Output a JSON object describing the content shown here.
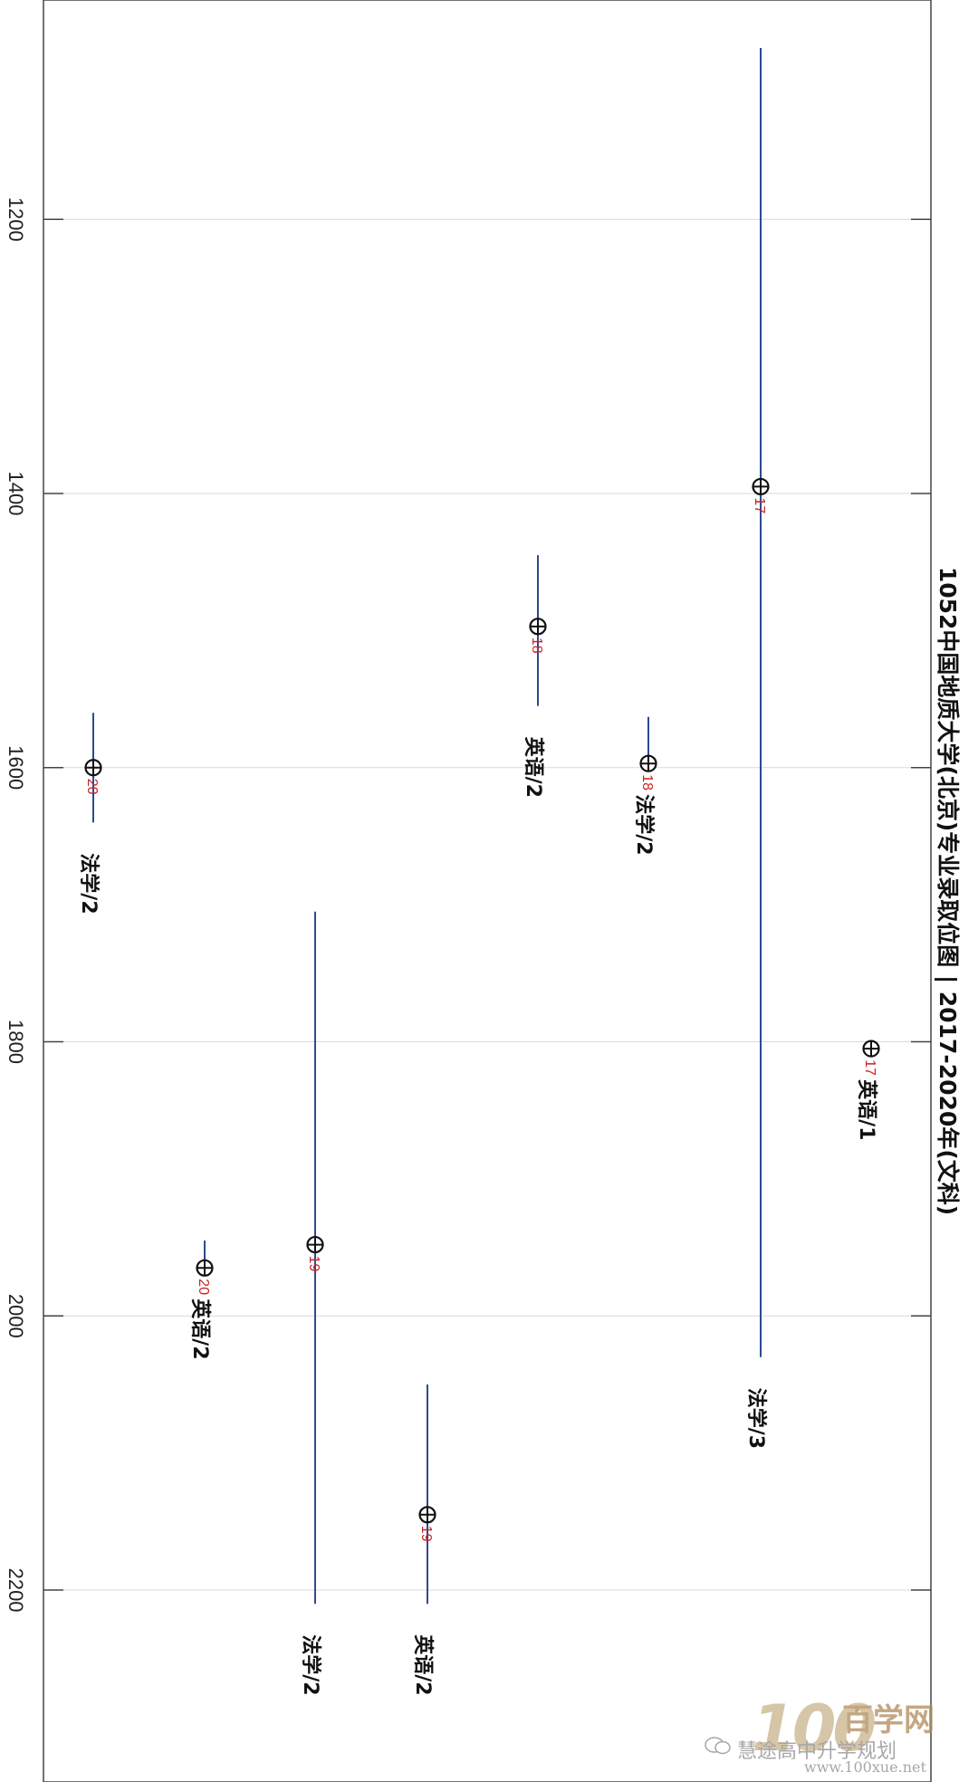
{
  "chart_data": {
    "type": "scatter",
    "title": "1052中国地质大学(北京)专业录取位图 | 2017-2020年(文科)",
    "yaxis": {
      "ticks": [
        1200,
        1400,
        1600,
        1800,
        2000,
        2200
      ],
      "range": [
        1040,
        2340
      ],
      "grid": true
    },
    "points": [
      {
        "year_label": "17",
        "major_label": "法学/3",
        "value": 1395,
        "min": 1075,
        "max": 2030
      },
      {
        "year_label": "17",
        "major_label": "英语/1",
        "value": 1805,
        "min": null,
        "max": null
      },
      {
        "year_label": "18",
        "major_label": "法学/2",
        "value": 1597,
        "min": 1563,
        "max": null
      },
      {
        "year_label": "18",
        "major_label": "英语/2",
        "value": 1497,
        "min": 1445,
        "max": 1555
      },
      {
        "year_label": "19",
        "major_label": "英语/2",
        "value": 2145,
        "min": 2050,
        "max": 2210
      },
      {
        "year_label": "19",
        "major_label": "法学/2",
        "value": 1948,
        "min": 1705,
        "max": 2210
      },
      {
        "year_label": "20",
        "major_label": "英语/2",
        "value": 1965,
        "min": 1945,
        "max": null
      },
      {
        "year_label": "20",
        "major_label": "法学/2",
        "value": 1600,
        "min": 1560,
        "max": 1640
      }
    ]
  },
  "watermark": {
    "brand_number": "100",
    "brand_name": "百学网",
    "subtitle": "慧途高中升学规划",
    "url": "www.100xue.net",
    "icon": "wechat-icon"
  },
  "colors": {
    "range_line": "#2e4a8e",
    "marker": "#111111",
    "year_label": "#cc2222",
    "grid": "#d9d9d9",
    "axis": "#444444",
    "watermark": "#b08a5a"
  }
}
